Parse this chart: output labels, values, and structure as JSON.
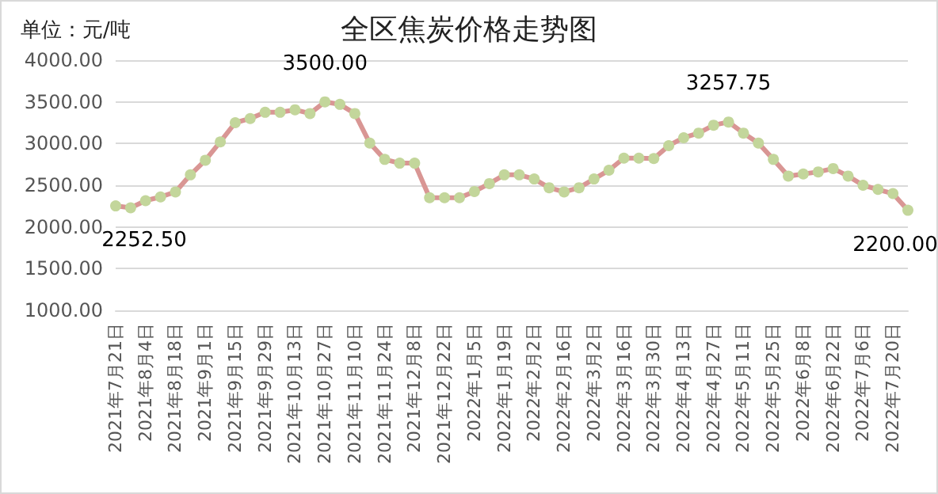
{
  "chart_data": {
    "type": "line",
    "title": "全区焦炭价格走势图",
    "annotations": [
      "单位：元/吨"
    ],
    "categories": [
      "2021年7月21日",
      null,
      "2021年8月4日",
      null,
      "2021年8月18日",
      null,
      "2021年9月1日",
      null,
      "2021年9月15日",
      null,
      "2021年9月29日",
      null,
      "2021年10月13日",
      null,
      "2021年10月27日",
      null,
      "2021年11月10日",
      null,
      "2021年11月24日",
      null,
      "2021年12月8日",
      null,
      "2021年12月22日",
      null,
      "2022年1月5日",
      null,
      "2022年1月19日",
      null,
      "2022年2月2日",
      null,
      "2022年2月16日",
      null,
      "2022年3月2日",
      null,
      "2022年3月16日",
      null,
      "2022年3月30日",
      null,
      "2022年4月13日",
      null,
      "2022年4月27日",
      null,
      "2022年5月11日",
      null,
      "2022年5月25日",
      null,
      "2022年6月8日",
      null,
      "2022年6月22日",
      null,
      "2022年7月6日",
      null,
      "2022年7月20日",
      null
    ],
    "series": [
      {
        "color": "#d99694",
        "colors": [
          "#c3d69b",
          "#c3d69b",
          "#c3d69b",
          "#c3d69b",
          "#c3d69b",
          "#c3d69b",
          "#c3d69b",
          "#c3d69b",
          "#c3d69b",
          "#c3d69b",
          "#c3d69b",
          "#c3d69b",
          "#c3d69b",
          "#c3d69b",
          "#c3d69b",
          "#c3d69b",
          "#c3d69b",
          "#c3d69b",
          "#c3d69b",
          "#c3d69b",
          "#c3d69b",
          "#c3d69b",
          "#c3d69b",
          "#c3d69b",
          "#c3d69b",
          "#c3d69b",
          "#c3d69b",
          "#c3d69b",
          "#c3d69b",
          "#c3d69b",
          "#c3d69b",
          "#c3d69b",
          "#c3d69b",
          "#c3d69b",
          "#c3d69b",
          "#c3d69b",
          "#c3d69b",
          "#c3d69b",
          "#c3d69b",
          "#c3d69b",
          "#c3d69b",
          "#c3d69b",
          "#c3d69b",
          "#c3d69b",
          "#c3d69b",
          "#c3d69b",
          "#c3d69b",
          "#c3d69b",
          "#c3d69b",
          "#c3d69b",
          "#c3d69b",
          "#c3d69b",
          "#c3d69b",
          "#c3d69b"
        ],
        "values": [
          2252.5,
          2230,
          2315,
          2360,
          2420,
          2625,
          2800,
          3020,
          3250,
          3300,
          3375,
          3375,
          3405,
          3360,
          3500,
          3470,
          3360,
          3005,
          2810,
          2765,
          2765,
          2350,
          2350,
          2350,
          2425,
          2520,
          2625,
          2625,
          2575,
          2470,
          2420,
          2470,
          2575,
          2680,
          2825,
          2825,
          2820,
          2975,
          3070,
          3125,
          3220,
          3257.75,
          3125,
          3005,
          2810,
          2610,
          2635,
          2660,
          2700,
          2610,
          2500,
          2450,
          2400,
          2200
        ],
        "value_labels": [
          "2252.50",
          null,
          null,
          null,
          null,
          null,
          null,
          null,
          null,
          null,
          null,
          null,
          null,
          null,
          "3500.00",
          null,
          null,
          null,
          null,
          null,
          null,
          null,
          null,
          null,
          null,
          null,
          null,
          null,
          null,
          null,
          null,
          null,
          null,
          null,
          null,
          null,
          null,
          null,
          null,
          null,
          null,
          "3257.75",
          null,
          null,
          null,
          null,
          null,
          null,
          null,
          null,
          null,
          null,
          null,
          "2200.00"
        ]
      }
    ],
    "ylim": [
      1000,
      4000
    ],
    "yticks": [
      {
        "value": 1000,
        "label": "1000.00"
      },
      {
        "value": 1500,
        "label": "1500.00"
      },
      {
        "value": 2000,
        "label": "2000.00"
      },
      {
        "value": 2500,
        "label": "2500.00"
      },
      {
        "value": 3000,
        "label": "3000.00"
      },
      {
        "value": 3500,
        "label": "3500.00"
      },
      {
        "value": 4000,
        "label": "4000.00"
      }
    ],
    "grid": "y",
    "marker": "circle",
    "line_style": "solid"
  }
}
